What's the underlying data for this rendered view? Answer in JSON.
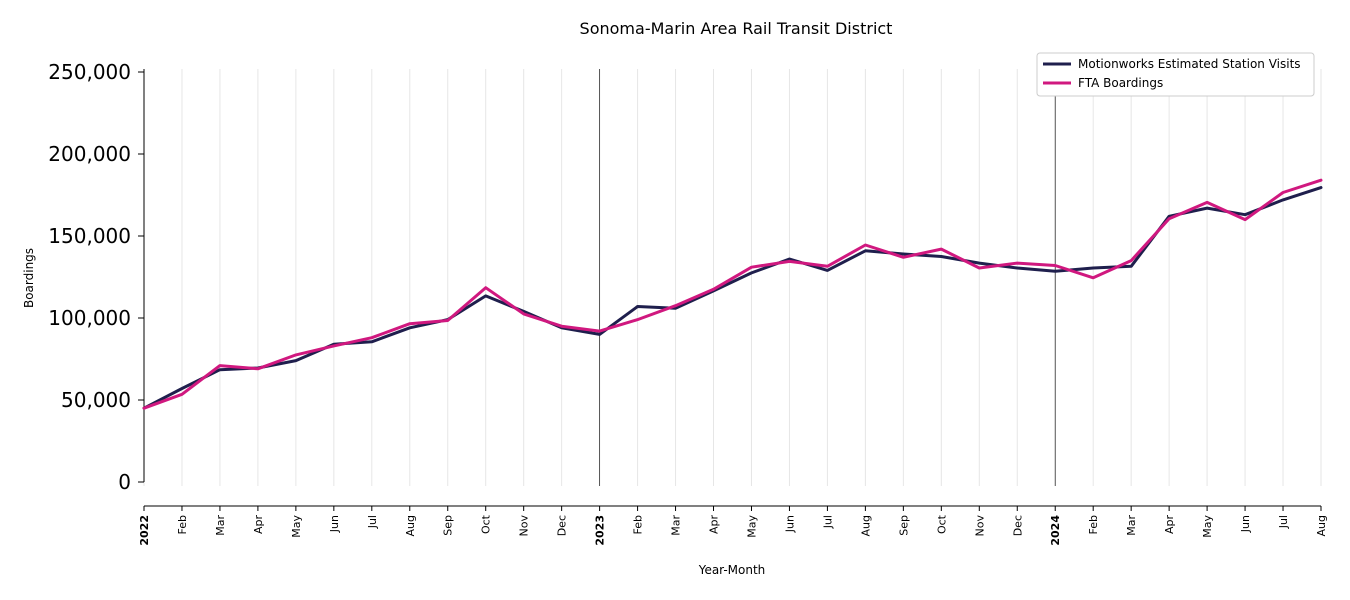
{
  "chart_data": {
    "type": "line",
    "title": "Sonoma-Marin Area Rail Transit District",
    "xlabel": "Year-Month",
    "ylabel": "Boardings",
    "ylim": [
      0,
      250000
    ],
    "yticks": [
      0,
      50000,
      100000,
      150000,
      200000,
      250000
    ],
    "ytick_labels": [
      "0",
      "50,000",
      "100,000",
      "150,000",
      "200,000",
      "250,000"
    ],
    "x": [
      "2022",
      "Feb",
      "Mar",
      "Apr",
      "May",
      "Jun",
      "Jul",
      "Aug",
      "Sep",
      "Oct",
      "Nov",
      "Dec",
      "2023",
      "Feb",
      "Mar",
      "Apr",
      "May",
      "Jun",
      "Jul",
      "Aug",
      "Sep",
      "Oct",
      "Nov",
      "Dec",
      "2024",
      "Feb",
      "Mar",
      "Apr",
      "May",
      "Jun",
      "Jul",
      "Aug"
    ],
    "year_markers": [
      "2023",
      "2024"
    ],
    "grid": "vertical",
    "legend_position": "top-right",
    "series": [
      {
        "name": "Motionworks Estimated Station Visits",
        "color": "#1f1f4d",
        "values": [
          45000,
          57000,
          68500,
          69500,
          74000,
          84000,
          85500,
          94000,
          99000,
          113500,
          104000,
          94000,
          90000,
          107000,
          106000,
          116500,
          127500,
          136000,
          129000,
          141000,
          139000,
          137500,
          133500,
          130500,
          128500,
          130500,
          131500,
          162000,
          167000,
          163000,
          172000,
          179500
        ]
      },
      {
        "name": "FTA Boardings",
        "color": "#d0187f",
        "values": [
          45000,
          53500,
          71000,
          69000,
          77500,
          83000,
          88000,
          96500,
          98500,
          118500,
          102500,
          95000,
          92000,
          99000,
          107500,
          117500,
          131000,
          134500,
          131500,
          144500,
          137000,
          142000,
          130500,
          133500,
          132000,
          124500,
          135000,
          160500,
          170500,
          160000,
          176500,
          184000
        ]
      }
    ]
  }
}
